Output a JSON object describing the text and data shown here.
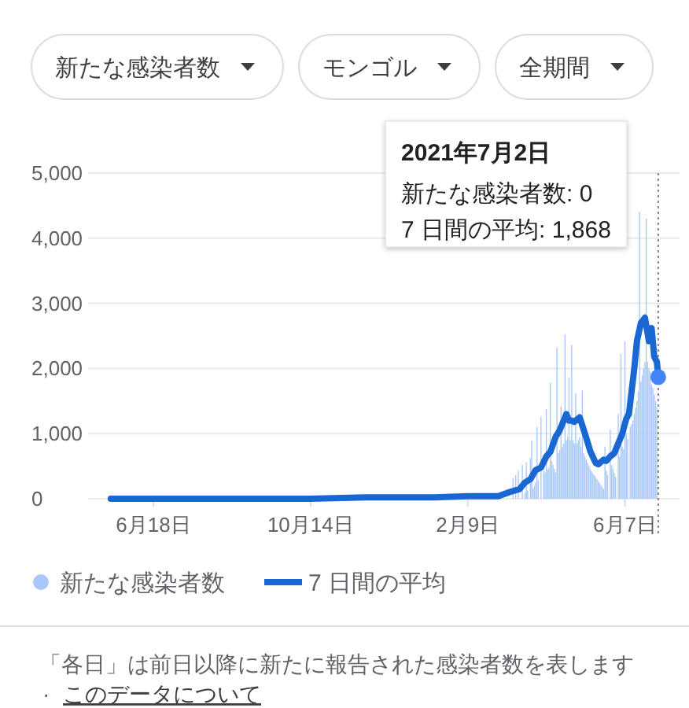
{
  "chart_data": {
    "type": "bar",
    "annotations": [
      "新たな感染者数",
      "モンゴル",
      "全期間",
      "2021年7月2日",
      "新たな感染者数: 0",
      "7 日間の平均: 1,868",
      "「各日」は前日以降に新たに報告された感染者数を表します",
      "·",
      "このデータについて"
    ],
    "xlim": [
      "2020-04-30",
      "2021-07-18"
    ],
    "xticks": [
      {
        "value": "2020-06-18",
        "label": "6月18日"
      },
      {
        "value": "2020-10-14",
        "label": "10月14日"
      },
      {
        "value": "2021-02-09",
        "label": "2月9日"
      },
      {
        "value": "2021-06-07",
        "label": "6月7日"
      }
    ],
    "ylim": [
      0,
      5000
    ],
    "yticks": [
      0,
      {
        "value": 1000,
        "label": "1,000"
      },
      {
        "value": 2000,
        "label": "2,000"
      },
      {
        "value": 3000,
        "label": "3,000"
      },
      {
        "value": 4000,
        "label": "4,000"
      },
      {
        "value": 5000,
        "label": "5,000"
      }
    ],
    "grid": "y",
    "legend": "bottom",
    "series": [
      {
        "name": "新たな感染者数",
        "color": "#a8c7fa",
        "x": [
          "2021-03-15",
          "2021-03-16",
          "2021-03-17",
          "2021-03-18",
          "2021-03-19",
          "2021-03-20",
          "2021-03-21",
          "2021-03-22",
          "2021-03-23",
          "2021-03-24",
          "2021-03-25",
          "2021-03-26",
          "2021-03-27",
          "2021-03-28",
          "2021-03-29",
          "2021-03-30",
          "2021-03-31",
          "2021-04-01",
          "2021-04-02",
          "2021-04-03",
          "2021-04-04",
          "2021-04-05",
          "2021-04-06",
          "2021-04-07",
          "2021-04-08",
          "2021-04-09",
          "2021-04-10",
          "2021-04-11",
          "2021-04-12",
          "2021-04-13",
          "2021-04-14",
          "2021-04-15",
          "2021-04-16",
          "2021-04-17",
          "2021-04-18",
          "2021-04-19",
          "2021-04-20",
          "2021-04-21",
          "2021-04-22",
          "2021-04-23",
          "2021-04-24",
          "2021-04-25",
          "2021-04-26",
          "2021-04-27",
          "2021-04-28",
          "2021-04-29",
          "2021-04-30",
          "2021-05-01",
          "2021-05-02",
          "2021-05-03",
          "2021-05-04",
          "2021-05-05",
          "2021-05-06",
          "2021-05-07",
          "2021-05-08",
          "2021-05-09",
          "2021-05-10",
          "2021-05-11",
          "2021-05-12",
          "2021-05-13",
          "2021-05-14",
          "2021-05-15",
          "2021-05-16",
          "2021-05-17",
          "2021-05-18",
          "2021-05-19",
          "2021-05-20",
          "2021-05-21",
          "2021-05-22",
          "2021-05-23",
          "2021-05-24",
          "2021-05-25",
          "2021-05-26",
          "2021-05-27",
          "2021-05-28",
          "2021-05-29",
          "2021-05-30",
          "2021-05-31",
          "2021-06-01",
          "2021-06-02",
          "2021-06-03",
          "2021-06-04",
          "2021-06-05",
          "2021-06-06",
          "2021-06-07",
          "2021-06-08",
          "2021-06-09",
          "2021-06-10",
          "2021-06-11",
          "2021-06-12",
          "2021-06-13",
          "2021-06-14",
          "2021-06-15",
          "2021-06-16",
          "2021-06-17",
          "2021-06-18",
          "2021-06-19",
          "2021-06-20",
          "2021-06-21",
          "2021-06-22",
          "2021-06-23",
          "2021-06-24",
          "2021-06-25",
          "2021-06-26",
          "2021-06-27",
          "2021-06-28",
          "2021-06-29",
          "2021-06-30",
          "2021-07-01",
          "2021-07-02"
        ],
        "values": [
          320,
          null,
          360,
          null,
          430,
          null,
          null,
          520,
          null,
          100,
          560,
          120,
          null,
          620,
          890,
          160,
          200,
          250,
          1100,
          280,
          null,
          1260,
          null,
          430,
          400,
          1380,
          450,
          480,
          1780,
          580,
          520,
          460,
          400,
          2320,
          700,
          750,
          1420,
          800,
          850,
          2520,
          900,
          950,
          1860,
          900,
          2360,
          900,
          850,
          1620,
          850,
          900,
          950,
          800,
          1660,
          700,
          650,
          600,
          550,
          500,
          450,
          420,
          390,
          360,
          330,
          300,
          270,
          240,
          210,
          180,
          150,
          800,
          430,
          370,
          null,
          1060,
          520,
          460,
          400,
          340,
          null,
          1300,
          650,
          2220,
          800,
          760,
          2420,
          1000,
          920,
          null,
          1100,
          1150,
          1200,
          1300,
          1400,
          1500,
          1650,
          4400,
          1800,
          1900,
          2000,
          2100,
          4300,
          2100,
          2000,
          1950,
          1750,
          1700,
          1600,
          1500,
          1400,
          0
        ]
      },
      {
        "name": "7 日間の平均",
        "type": "line",
        "color": "#1967d2",
        "x": [
          "2020-05-17",
          "2020-06-18",
          "2020-08-01",
          "2020-10-14",
          "2020-11-24",
          "2020-12-20",
          "2021-01-15",
          "2021-02-09",
          "2021-02-25",
          "2021-03-04",
          "2021-03-12",
          "2021-03-20",
          "2021-03-24",
          "2021-03-28",
          "2021-04-01",
          "2021-04-05",
          "2021-04-09",
          "2021-04-12",
          "2021-04-16",
          "2021-04-19",
          "2021-04-22",
          "2021-04-24",
          "2021-04-26",
          "2021-04-28",
          "2021-04-30",
          "2021-05-04",
          "2021-05-08",
          "2021-05-12",
          "2021-05-16",
          "2021-05-18",
          "2021-05-22",
          "2021-05-24",
          "2021-05-27",
          "2021-05-30",
          "2021-06-02",
          "2021-06-05",
          "2021-06-08",
          "2021-06-10",
          "2021-06-12",
          "2021-06-14",
          "2021-06-16",
          "2021-06-19",
          "2021-06-22",
          "2021-06-25",
          "2021-06-27",
          "2021-06-29",
          "2021-07-01",
          "2021-07-02"
        ],
        "values": [
          0,
          0,
          0,
          0,
          20,
          20,
          20,
          40,
          40,
          40,
          100,
          150,
          250,
          300,
          440,
          480,
          650,
          720,
          950,
          1050,
          1200,
          1300,
          1200,
          1200,
          1180,
          1250,
          1000,
          730,
          550,
          530,
          600,
          580,
          650,
          700,
          850,
          1000,
          1230,
          1300,
          1650,
          2000,
          2420,
          2700,
          2780,
          2420,
          2620,
          2180,
          2100,
          1868
        ]
      },
      {
        "type": "scatter",
        "color": "#4285f4",
        "x": [
          "2021-07-02"
        ],
        "values": [
          1868
        ]
      }
    ],
    "ref_lines": [
      {
        "axis": "x",
        "value": "2021-07-02",
        "line_style": "dotted",
        "color": "#80868b"
      }
    ]
  }
}
